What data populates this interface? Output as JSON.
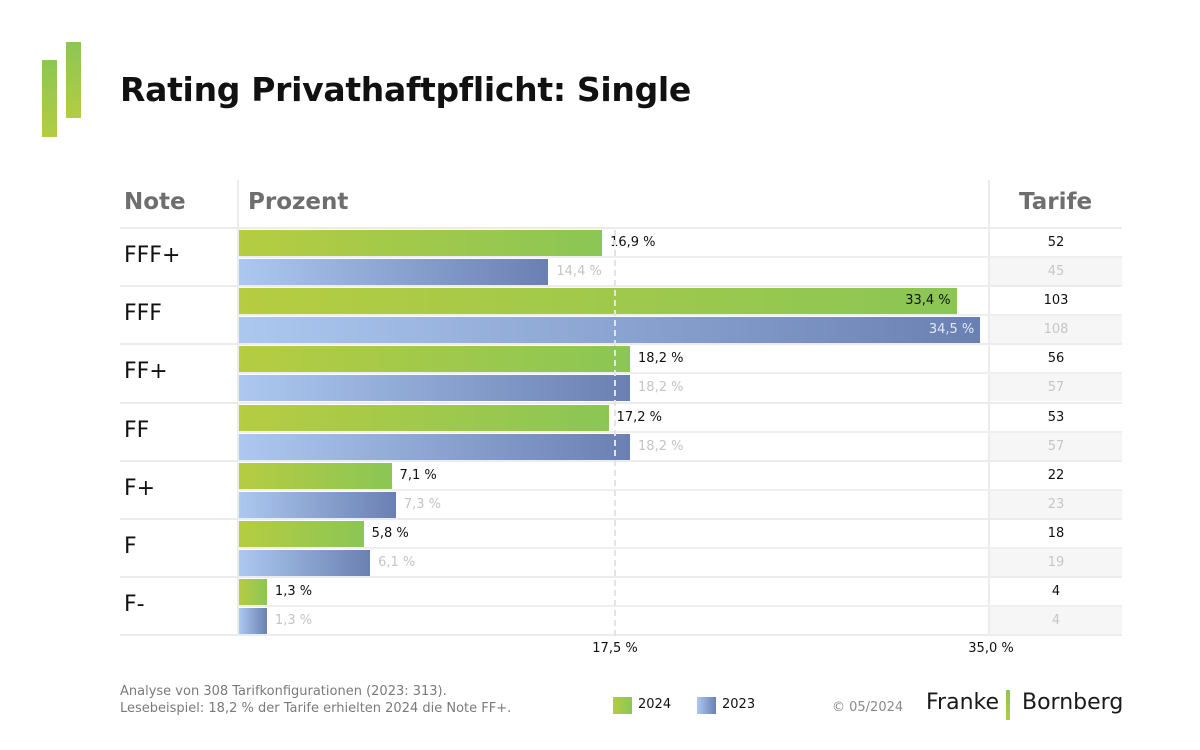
{
  "header": {
    "title": "Rating Privathaftpflicht: Single",
    "col_note": "Note",
    "col_prozent": "Prozent",
    "col_tarife": "Tarife"
  },
  "colors": {
    "y2024_start": "#b6cc41",
    "y2024_end": "#8bc655",
    "y2023_start": "#acc8f0",
    "y2023_end": "#6a80b2"
  },
  "chart_data": {
    "type": "bar",
    "orientation": "horizontal",
    "title": "Rating Privathaftpflicht: Single",
    "xlabel": "Prozent",
    "ylabel": "Note",
    "categories": [
      "FFF+",
      "FFF",
      "FF+",
      "FF",
      "F+",
      "F",
      "F-"
    ],
    "series": [
      {
        "name": "2024",
        "values": [
          16.9,
          33.4,
          18.2,
          17.2,
          7.1,
          5.8,
          1.3
        ],
        "labels": [
          "16,9 %",
          "33,4 %",
          "18,2 %",
          "17,2 %",
          "7,1 %",
          "5,8 %",
          "1,3 %"
        ],
        "tarife": [
          52,
          103,
          56,
          53,
          22,
          18,
          4
        ]
      },
      {
        "name": "2023",
        "values": [
          14.4,
          34.5,
          18.2,
          18.2,
          7.3,
          6.1,
          1.3
        ],
        "labels": [
          "14,4 %",
          "34,5 %",
          "18,2 %",
          "18,2 %",
          "7,3 %",
          "6,1 %",
          "1,3 %"
        ],
        "tarife": [
          45,
          108,
          57,
          57,
          23,
          19,
          4
        ]
      }
    ],
    "xlim": [
      0,
      35
    ],
    "xticks": [
      17.5,
      35.0
    ],
    "xtick_labels": [
      "17,5 %",
      "35,0 %"
    ],
    "reference_line": 17.5,
    "grid": false,
    "legend": {
      "position": "bottom-center",
      "entries": [
        "2024",
        "2023"
      ]
    }
  },
  "footer": {
    "line1": "Analyse von 308 Tarifkonfigurationen (2023: 313).",
    "line2": "Lesebeispiel: 18,2 % der Tarife erhielten 2024 die Note FF+.",
    "legend_2024": "2024",
    "legend_2023": "2023",
    "copyright": "© 05/2024",
    "brand_left": "Franke",
    "brand_right": "Bornberg"
  }
}
